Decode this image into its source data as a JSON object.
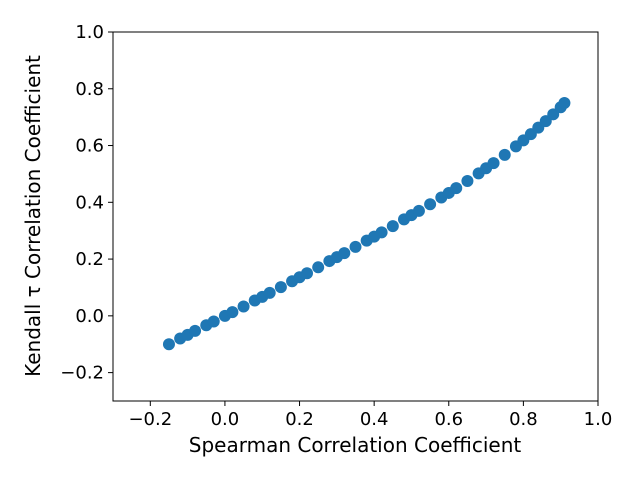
{
  "chart_data": {
    "type": "scatter",
    "title": "",
    "xlabel": "Spearman Correlation Coefficient",
    "ylabel": "Kendall τ Correlation Coefficient",
    "xlim": [
      -0.3,
      1.0
    ],
    "ylim": [
      -0.3,
      1.0
    ],
    "xticks": [
      -0.2,
      0.0,
      0.2,
      0.4,
      0.6,
      0.8,
      1.0
    ],
    "xtick_labels": [
      "−0.2",
      "0.0",
      "0.2",
      "0.4",
      "0.6",
      "0.8",
      "1.0"
    ],
    "yticks": [
      -0.2,
      0.0,
      0.2,
      0.4,
      0.6,
      0.8,
      1.0
    ],
    "ytick_labels": [
      "−0.2",
      "0.0",
      "0.2",
      "0.4",
      "0.6",
      "0.8",
      "1.0"
    ],
    "grid": false,
    "marker_color": "#1f77b4",
    "series": [
      {
        "x": [
          -0.15,
          -0.12,
          -0.1,
          -0.08,
          -0.05,
          -0.03,
          0.0,
          0.02,
          0.05,
          0.08,
          0.1,
          0.12,
          0.15,
          0.18,
          0.2,
          0.22,
          0.25,
          0.28,
          0.3,
          0.32,
          0.35,
          0.38,
          0.4,
          0.42,
          0.45,
          0.48,
          0.5,
          0.52,
          0.55,
          0.58,
          0.6,
          0.62,
          0.65,
          0.68,
          0.7,
          0.72,
          0.75,
          0.78,
          0.8,
          0.82,
          0.84,
          0.86,
          0.88,
          0.9,
          0.91
        ],
        "y": [
          -0.1,
          -0.08,
          -0.067,
          -0.053,
          -0.033,
          -0.02,
          0.0,
          0.013,
          0.033,
          0.054,
          0.067,
          0.081,
          0.101,
          0.122,
          0.136,
          0.15,
          0.171,
          0.193,
          0.207,
          0.221,
          0.243,
          0.265,
          0.279,
          0.294,
          0.316,
          0.34,
          0.355,
          0.37,
          0.393,
          0.417,
          0.433,
          0.45,
          0.475,
          0.502,
          0.52,
          0.538,
          0.567,
          0.597,
          0.618,
          0.64,
          0.663,
          0.686,
          0.71,
          0.735,
          0.75
        ]
      }
    ]
  }
}
